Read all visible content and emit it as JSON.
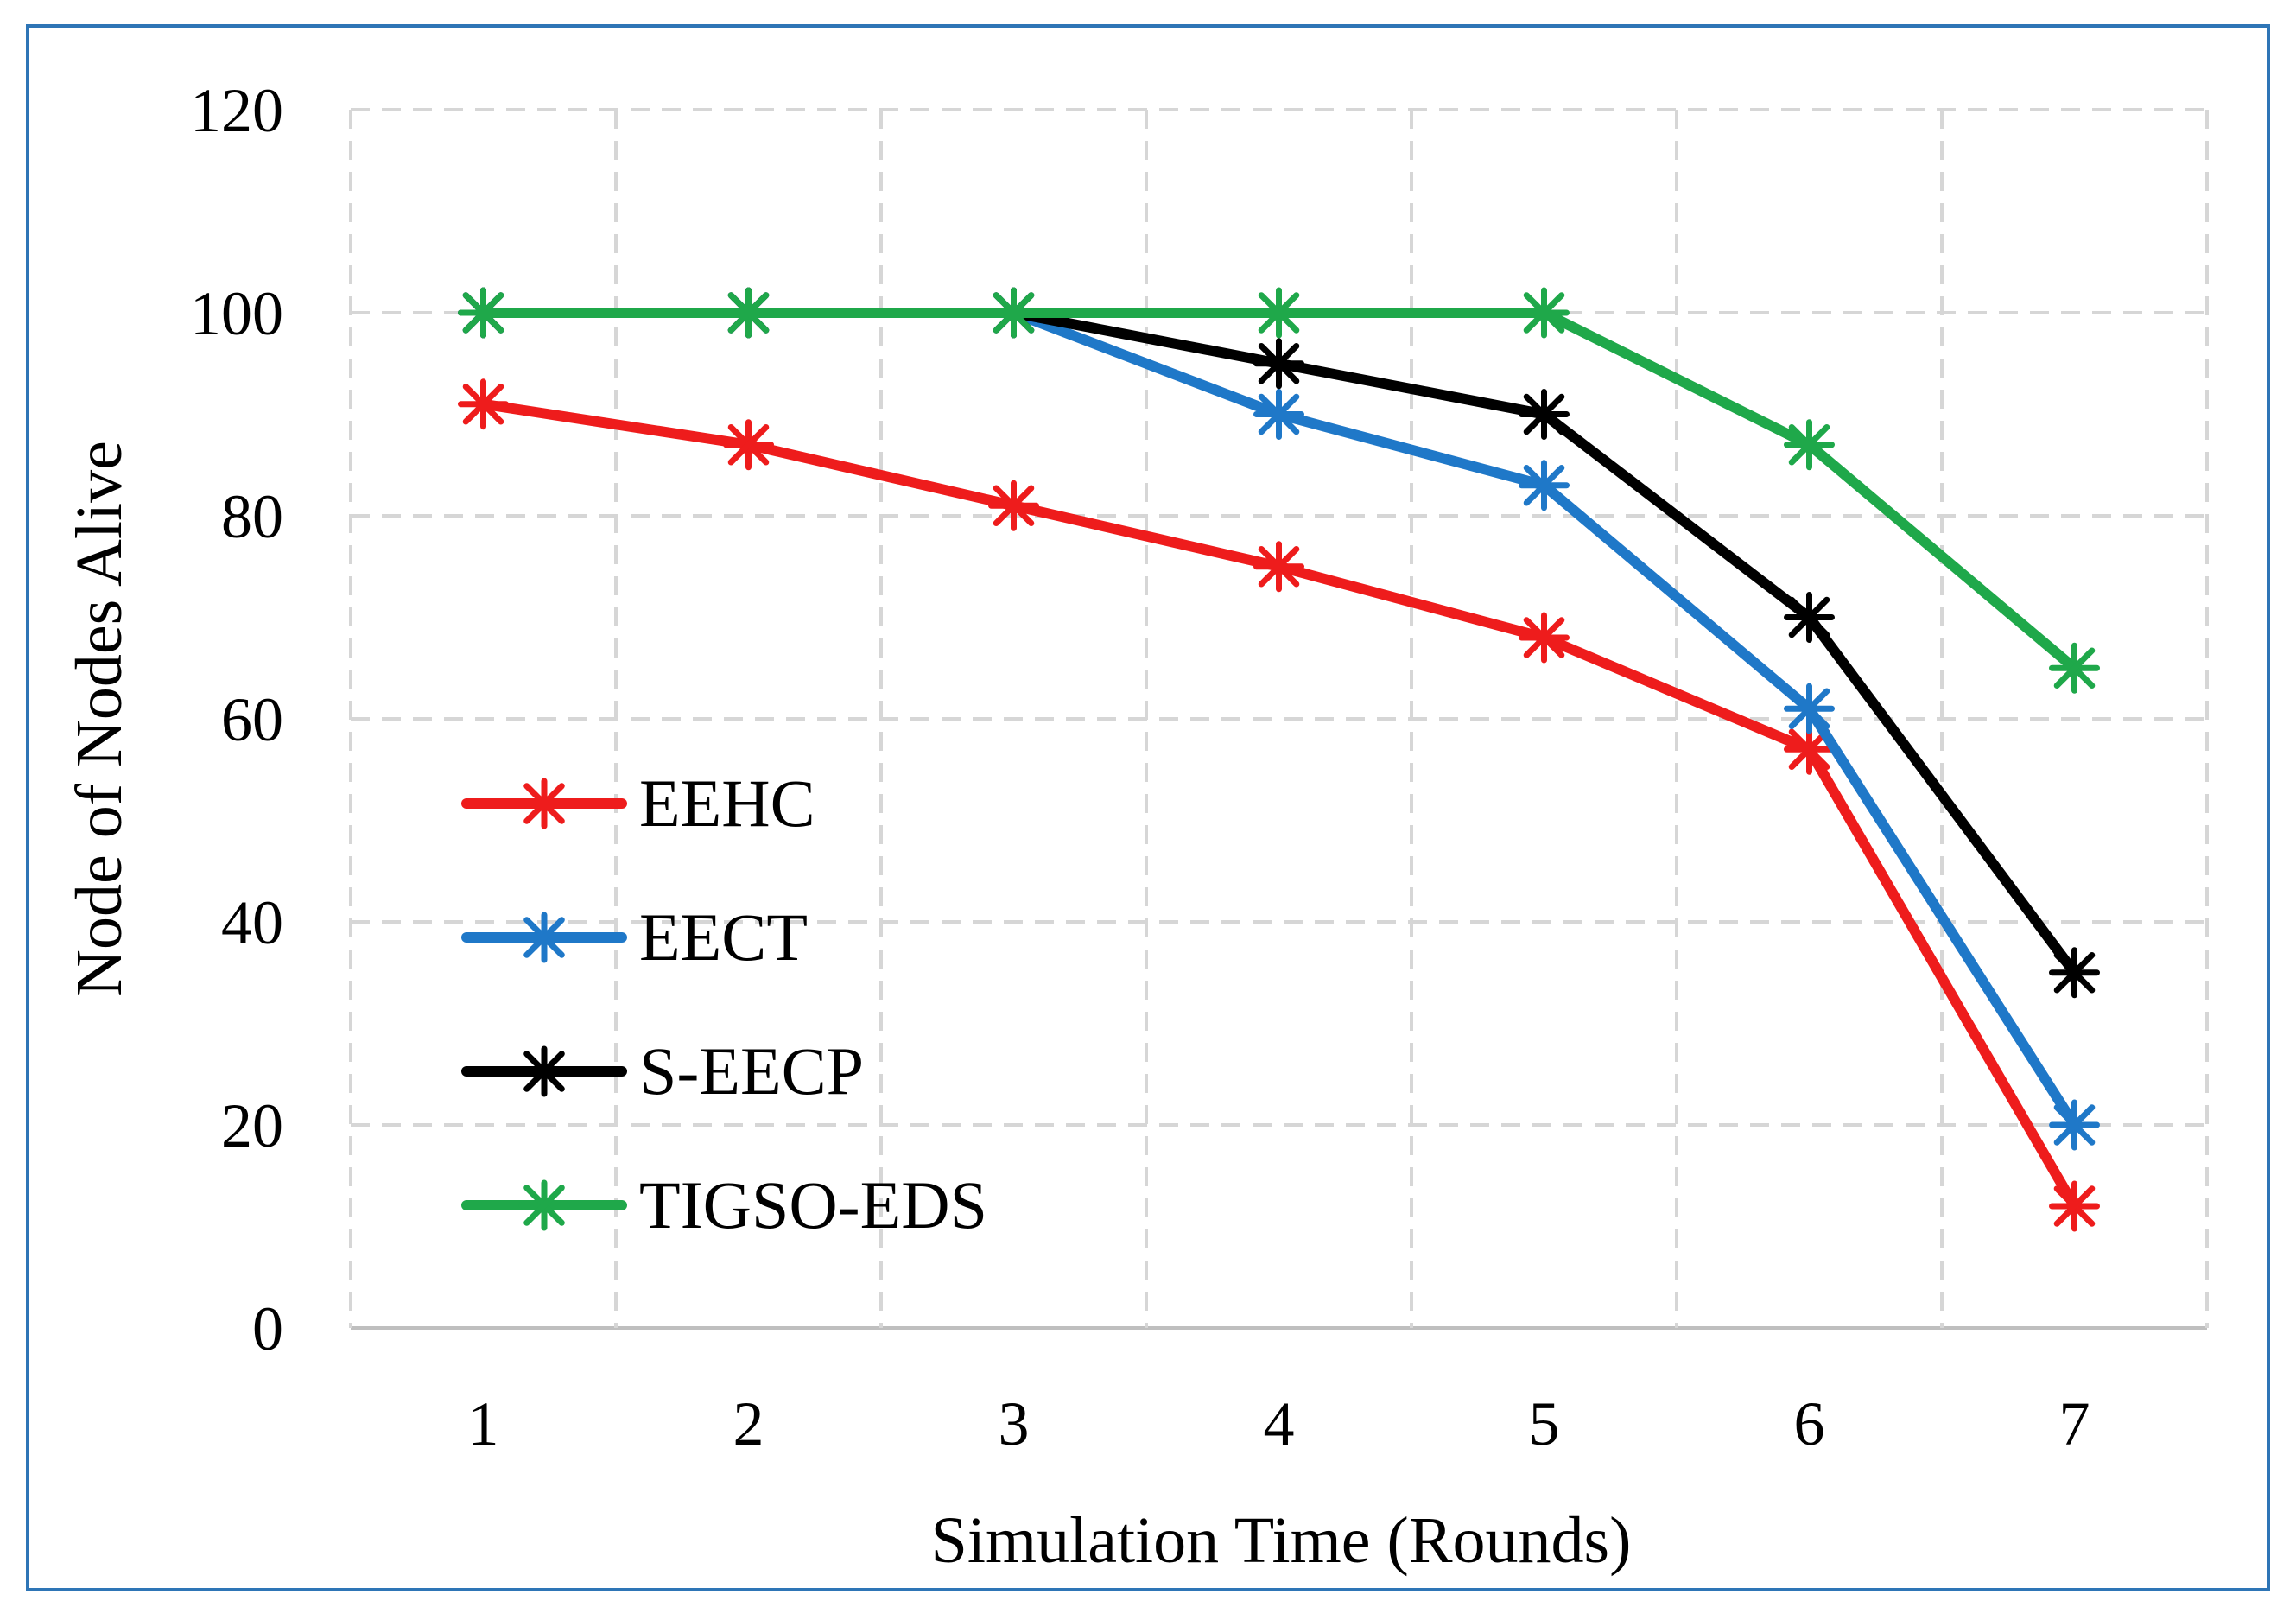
{
  "chart_data": {
    "type": "line",
    "title": "",
    "xlabel": "Simulation Time (Rounds)",
    "ylabel": "Node of Nodes Alive",
    "categories": [
      "1",
      "2",
      "3",
      "4",
      "5",
      "6",
      "7"
    ],
    "ylim": [
      0,
      120
    ],
    "yticks": [
      0,
      20,
      40,
      60,
      80,
      100,
      120
    ],
    "grid": "dashed",
    "legend_position": "left-bottom",
    "series": [
      {
        "name": "EEHC",
        "color": "#ee1c1c",
        "values": [
          91,
          87,
          81,
          75,
          68,
          57,
          12
        ]
      },
      {
        "name": "EECT",
        "color": "#1f78c8",
        "values": [
          100,
          100,
          100,
          90,
          83,
          61,
          20
        ]
      },
      {
        "name": "S-EECP",
        "color": "#000000",
        "values": [
          100,
          100,
          100,
          95,
          90,
          70,
          35
        ]
      },
      {
        "name": "TIGSO-EDS",
        "color": "#1fa84a",
        "values": [
          100,
          100,
          100,
          100,
          100,
          87,
          65
        ]
      }
    ]
  }
}
